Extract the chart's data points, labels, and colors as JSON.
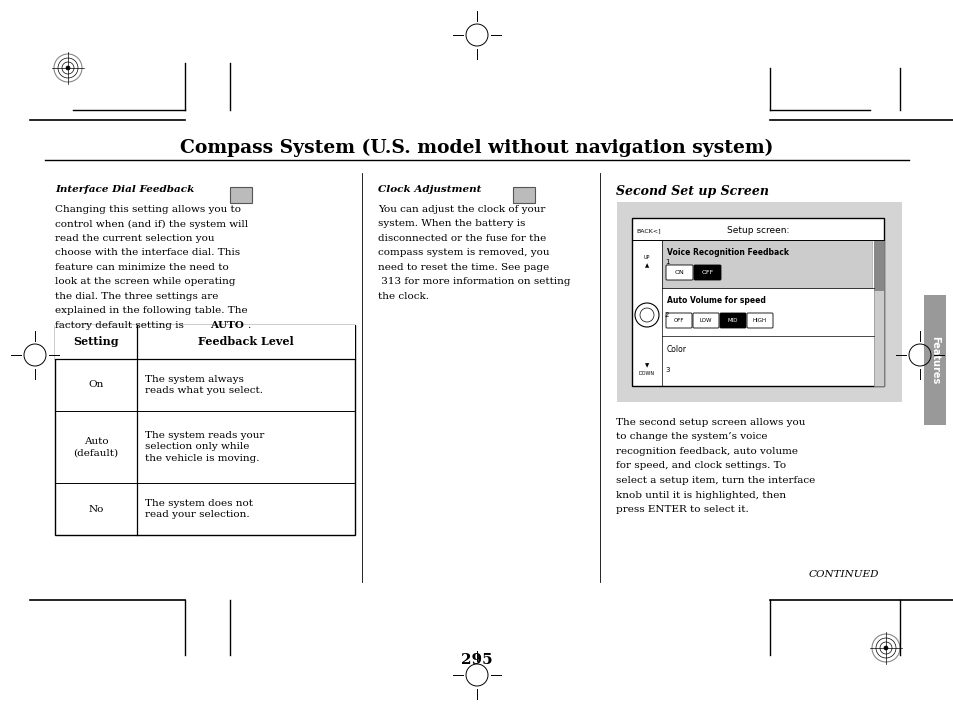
{
  "page_bg": "#ffffff",
  "title": "Compass System (U.S. model without navigation system)",
  "title_fontsize": 13.5,
  "page_number": "295",
  "continued_text": "CONTINUED",
  "sidebar_label": "Features",
  "sidebar_color": "#999999",
  "idf_heading": "Interface Dial Feedback",
  "clock_heading": "Clock Adjustment",
  "screen_section_heading": "Second Set up Screen",
  "screen_bg": "#d4d4d4",
  "table_header1": "Setting",
  "table_header2": "Feedback Level",
  "table_rows_col1": [
    "On",
    "Auto\n(default)",
    "No"
  ],
  "table_rows_col2": [
    "The system always\nreads what you select.",
    "The system reads your\nselection only while\nthe vehicle is moving.",
    "The system does not\nread your selection."
  ],
  "right_body_lines": [
    "The second setup screen allows you",
    "to change the system’s voice",
    "recognition feedback, auto volume",
    "for speed, and clock settings. To",
    "select a setup item, turn the interface",
    "knob until it is highlighted, then",
    "press ENTER to select it."
  ]
}
